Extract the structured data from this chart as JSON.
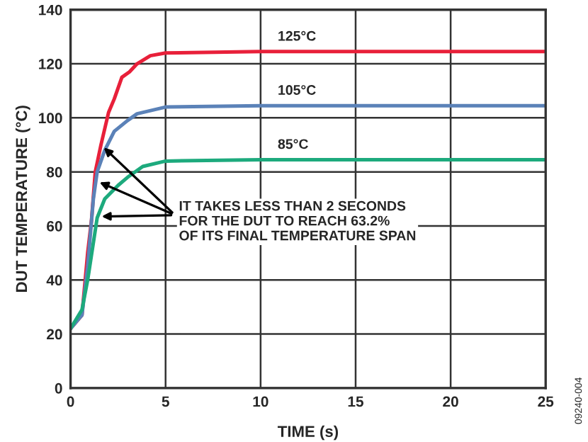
{
  "chart_data": {
    "type": "line",
    "xlabel": "TIME (s)",
    "ylabel": "DUT TEMPERATURE (°C)",
    "xlim": [
      0,
      25
    ],
    "xticks": [
      0,
      5,
      10,
      15,
      20,
      25
    ],
    "ylim": [
      0,
      140
    ],
    "yticks": [
      0,
      20,
      40,
      60,
      80,
      100,
      120,
      140
    ],
    "grid": true,
    "series": [
      {
        "name": "125°C",
        "color": "#e8203a",
        "x": [
          0,
          0.6,
          0.9,
          1.1,
          1.3,
          1.6,
          2.0,
          2.3,
          2.7,
          3.1,
          3.5,
          4.2,
          5,
          10,
          25
        ],
        "values": [
          22,
          27,
          50,
          62,
          80,
          90,
          102,
          107,
          115,
          117,
          120,
          123,
          124,
          124.5,
          124.5
        ]
      },
      {
        "name": "105°C",
        "color": "#5b82b8",
        "x": [
          0,
          0.6,
          0.9,
          1.2,
          1.4,
          1.8,
          2.3,
          3.0,
          3.5,
          5,
          10,
          25
        ],
        "values": [
          22,
          27,
          45,
          70,
          80,
          88,
          95,
          99,
          101.5,
          104,
          104.5,
          104.5
        ]
      },
      {
        "name": "85°C",
        "color": "#1daa7d",
        "x": [
          0,
          0.6,
          0.9,
          1.4,
          1.8,
          2.5,
          3.0,
          3.8,
          5,
          10,
          25
        ],
        "values": [
          22,
          29,
          40,
          63,
          70,
          75,
          78,
          82,
          84,
          84.5,
          84.5
        ]
      }
    ],
    "annotations": [
      {
        "text": "IT TAKES LESS THAN 2 SECONDS\nFOR THE DUT TO REACH 63.2%\nOF ITS FINAL TEMPERATURE SPAN",
        "x": 1.6,
        "y": 90
      },
      "09240-004"
    ]
  }
}
